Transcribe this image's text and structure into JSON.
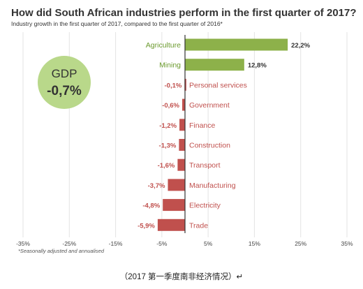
{
  "header": {
    "title": "How did South African industries perform in the first quarter of 2017?",
    "subtitle": "Industry growth in the first quarter of 2017, compared to the first quarter of 2016*"
  },
  "gdp_badge": {
    "label": "GDP",
    "value": "-0,7%",
    "color": "#b9d88a"
  },
  "footnote": "*Seasonally adjusted and annualised",
  "caption": "（2017 第一季度南非经济情况）↵",
  "colors": {
    "positive": "#8db14a",
    "negative": "#c0504d",
    "positive_text": "#6b9a2e",
    "negative_text": "#c0504d"
  },
  "chart_data": {
    "type": "bar",
    "orientation": "horizontal",
    "categories": [
      "Agriculture",
      "Mining",
      "Personal services",
      "Government",
      "Finance",
      "Construction",
      "Transport",
      "Manufacturing",
      "Electricity",
      "Trade"
    ],
    "values": [
      22.2,
      12.8,
      -0.1,
      -0.6,
      -1.2,
      -1.3,
      -1.6,
      -3.7,
      -4.8,
      -5.9
    ],
    "value_labels": [
      "22,2%",
      "12,8%",
      "-0,1%",
      "-0,6%",
      "-1,2%",
      "-1,3%",
      "-1,6%",
      "-3,7%",
      "-4,8%",
      "-5,9%"
    ],
    "xlim": [
      -35,
      35
    ],
    "xticks": [
      -35,
      -25,
      -15,
      -5,
      5,
      15,
      25,
      35
    ],
    "xtick_labels": [
      "-35%",
      "-25%",
      "-15%",
      "-5%",
      "5%",
      "15%",
      "25%",
      "35%"
    ],
    "grid": true,
    "title": "How did South African industries perform in the first quarter of 2017?",
    "xlabel": "",
    "ylabel": ""
  }
}
